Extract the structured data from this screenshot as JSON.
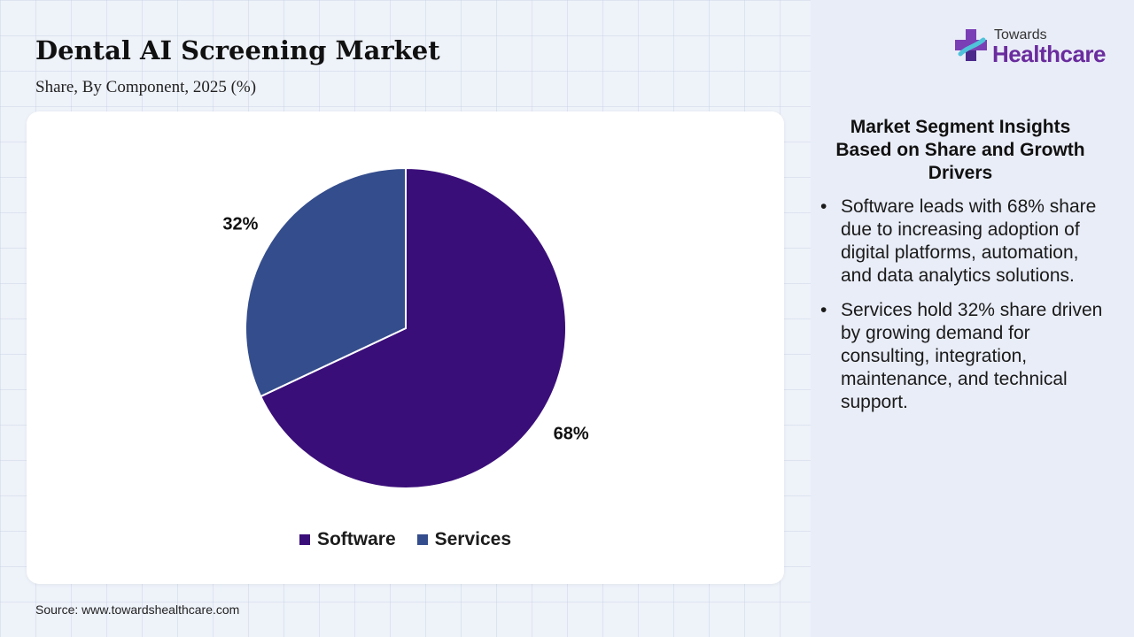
{
  "header": {
    "title": "Dental AI Screening Market",
    "subtitle": "Share, By Component, 2025 (%)"
  },
  "chart_data": {
    "type": "pie",
    "title": "Dental AI Screening Market",
    "subtitle": "Share, By Component, 2025 (%)",
    "categories": [
      "Software",
      "Services"
    ],
    "values": [
      68,
      32
    ],
    "labels": [
      "68%",
      "32%"
    ],
    "colors": [
      "#3a0e79",
      "#344d8c"
    ],
    "legend_position": "bottom-center",
    "start_angle": "12 o'clock, clockwise"
  },
  "source": "Source: www.towardshealthcare.com",
  "logo": {
    "top": "Towards",
    "bottom": "Healthcare",
    "icon": "cross-icon"
  },
  "insights": {
    "heading": "Market Segment Insights Based on Share and Growth Drivers",
    "bullets": [
      "Software leads with 68% share due to increasing adoption of digital platforms, automation, and data analytics solutions.",
      "Services hold 32% share driven by growing demand for consulting, integration, maintenance, and technical support."
    ]
  }
}
